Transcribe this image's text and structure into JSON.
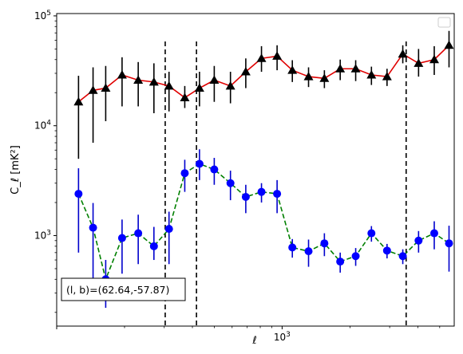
{
  "chart_data": {
    "type": "line",
    "title": "",
    "xlabel": "ℓ",
    "ylabel": "C_ℓ  [mK²]",
    "x_scale": "log",
    "y_scale": "log",
    "xlim": [
      100,
      5800
    ],
    "ylim": [
      150,
      105000
    ],
    "x_ticks": [
      {
        "value": 1000,
        "base": "10",
        "exp": "3"
      }
    ],
    "y_ticks": [
      {
        "value": 1000,
        "base": "10",
        "exp": "3"
      },
      {
        "value": 10000,
        "base": "10",
        "exp": "4"
      },
      {
        "value": 100000,
        "base": "10",
        "exp": "5"
      }
    ],
    "vlines": [
      303,
      417,
      3550
    ],
    "annotation": "(l, b)=(62.64,-57.87)",
    "legend": "upper right (empty)",
    "series": [
      {
        "color": "#e00000",
        "marker": "triangle",
        "marker_color": "#000000",
        "err_color": "#000000",
        "linestyle": "solid",
        "x": [
          125,
          145,
          165,
          195,
          230,
          270,
          315,
          370,
          430,
          500,
          590,
          690,
          810,
          950,
          1110,
          1310,
          1540,
          1810,
          2120,
          2490,
          2920,
          3430,
          4030,
          4730,
          5500
        ],
        "y": [
          16500,
          21000,
          22000,
          29000,
          26000,
          25000,
          23000,
          18000,
          22000,
          26000,
          23000,
          31000,
          41000,
          43000,
          32000,
          28000,
          27000,
          33000,
          33000,
          29000,
          28000,
          45000,
          37000,
          40000,
          54000
        ],
        "err_lo": [
          11500,
          14000,
          11000,
          14000,
          11000,
          12000,
          9500,
          3500,
          7000,
          9500,
          7000,
          9000,
          10000,
          11000,
          7000,
          5500,
          5000,
          7000,
          7500,
          5500,
          5000,
          8000,
          9000,
          11000,
          20000
        ],
        "err_hi": [
          12000,
          13000,
          13000,
          13000,
          12000,
          12000,
          8000,
          5000,
          9000,
          9000,
          8000,
          10000,
          12000,
          11000,
          7500,
          6000,
          5000,
          7000,
          6500,
          5500,
          5000,
          9000,
          13000,
          13000,
          19000
        ]
      },
      {
        "color": "#008000",
        "marker": "circle",
        "marker_color": "#0000ff",
        "err_color": "#0000cc",
        "linestyle": "dashed",
        "x": [
          125,
          145,
          165,
          195,
          230,
          270,
          315,
          370,
          430,
          500,
          590,
          690,
          810,
          950,
          1110,
          1310,
          1540,
          1810,
          2120,
          2490,
          2920,
          3430,
          4030,
          4730,
          5500
        ],
        "y": [
          2400,
          1180,
          400,
          950,
          1050,
          800,
          1150,
          3700,
          4500,
          4000,
          3000,
          2250,
          2500,
          2400,
          780,
          720,
          850,
          580,
          650,
          1050,
          730,
          650,
          900,
          1050,
          850
        ],
        "err_lo": [
          1700,
          800,
          180,
          500,
          500,
          200,
          600,
          1200,
          1300,
          1100,
          900,
          650,
          500,
          800,
          150,
          200,
          200,
          120,
          120,
          170,
          110,
          100,
          200,
          300,
          380
        ],
        "err_hi": [
          1700,
          800,
          200,
          450,
          500,
          400,
          500,
          1200,
          1600,
          1100,
          900,
          650,
          500,
          800,
          150,
          200,
          200,
          120,
          120,
          170,
          110,
          100,
          200,
          300,
          380
        ]
      }
    ]
  }
}
